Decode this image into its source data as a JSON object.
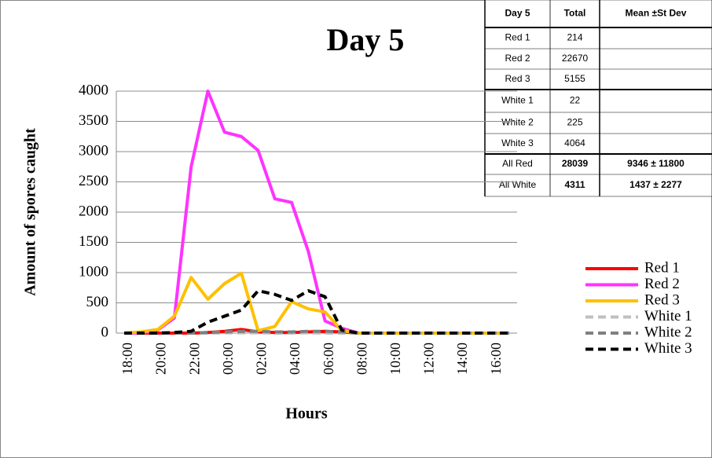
{
  "chart_data": {
    "type": "line",
    "title": "Day 5",
    "x_label": "Hours",
    "y_label": "Amount of spores caught",
    "categories": [
      "18:00",
      null,
      "20:00",
      null,
      "22:00",
      null,
      "00:00",
      null,
      "02:00",
      null,
      "04:00",
      null,
      "06:00",
      null,
      "08:00",
      null,
      "10:00",
      null,
      "12:00",
      null,
      "14:00",
      null,
      "16:00",
      null
    ],
    "ylim": [
      0,
      4000
    ],
    "yticks": [
      0,
      500,
      1000,
      1500,
      2000,
      2500,
      3000,
      3500,
      4000
    ],
    "grid": true,
    "legend": "right",
    "series": [
      {
        "name": "Red 1",
        "color": "#ff0000",
        "dashed": false,
        "values": [
          0,
          0,
          0,
          0,
          0,
          10,
          30,
          60,
          20,
          10,
          10,
          20,
          30,
          20,
          0,
          0,
          0,
          0,
          0,
          0,
          0,
          0,
          0,
          0
        ]
      },
      {
        "name": "Red 2",
        "color": "#ff33ff",
        "dashed": false,
        "values": [
          0,
          0,
          50,
          250,
          2750,
          4000,
          3320,
          3250,
          3020,
          2220,
          2160,
          1350,
          200,
          80,
          0,
          0,
          0,
          0,
          0,
          0,
          0,
          0,
          0,
          0
        ]
      },
      {
        "name": "Red 3",
        "color": "#ffc000",
        "dashed": false,
        "values": [
          0,
          20,
          60,
          280,
          920,
          560,
          820,
          990,
          40,
          110,
          520,
          400,
          350,
          40,
          0,
          0,
          0,
          0,
          0,
          0,
          0,
          0,
          0,
          0
        ]
      },
      {
        "name": "White 1",
        "color": "#bfbfbf",
        "dashed": true,
        "values": [
          0,
          0,
          0,
          0,
          0,
          0,
          5,
          5,
          5,
          0,
          0,
          5,
          0,
          0,
          0,
          0,
          0,
          0,
          0,
          0,
          0,
          0,
          0,
          0
        ]
      },
      {
        "name": "White 2",
        "color": "#808080",
        "dashed": true,
        "values": [
          0,
          0,
          0,
          0,
          0,
          10,
          20,
          30,
          30,
          20,
          20,
          30,
          30,
          20,
          0,
          0,
          0,
          0,
          0,
          0,
          0,
          0,
          0,
          0
        ]
      },
      {
        "name": "White 3",
        "color": "#000000",
        "dashed": true,
        "values": [
          0,
          0,
          0,
          10,
          30,
          180,
          280,
          380,
          700,
          640,
          540,
          700,
          600,
          50,
          0,
          0,
          0,
          0,
          0,
          0,
          0,
          0,
          0,
          0
        ]
      }
    ]
  },
  "table": {
    "header": [
      "Day 5",
      "Total",
      "Mean ±St Dev"
    ],
    "rows": [
      [
        "Red 1",
        "214",
        ""
      ],
      [
        "Red 2",
        "22670",
        ""
      ],
      [
        "Red 3",
        "5155",
        ""
      ],
      [
        "White 1",
        "22",
        ""
      ],
      [
        "White 2",
        "225",
        ""
      ],
      [
        "White 3",
        "4064",
        ""
      ],
      [
        "All Red",
        "28039",
        "9346 ± 11800"
      ],
      [
        "All White",
        "4311",
        "1437 ± 2277"
      ]
    ]
  }
}
